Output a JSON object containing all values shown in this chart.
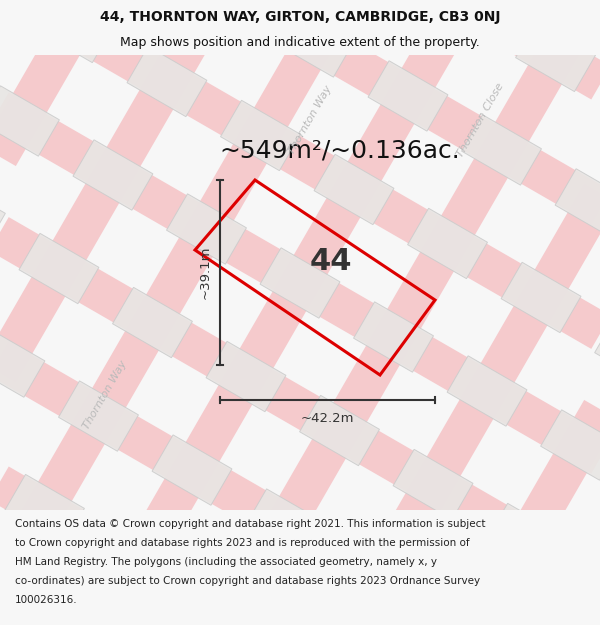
{
  "title": "44, THORNTON WAY, GIRTON, CAMBRIDGE, CB3 0NJ",
  "subtitle": "Map shows position and indicative extent of the property.",
  "area_text": "~549m²/~0.136ac.",
  "property_number": "44",
  "dim_horizontal": "~42.2m",
  "dim_vertical": "~39.1m",
  "street_label_way_left": "Thornton Way",
  "street_label_way_top": "Thornton Way",
  "street_label_close": "Thornton Close",
  "footer_lines": [
    "Contains OS data © Crown copyright and database right 2021. This information is subject",
    "to Crown copyright and database rights 2023 and is reproduced with the permission of",
    "HM Land Registry. The polygons (including the associated geometry, namely x, y",
    "co-ordinates) are subject to Crown copyright and database rights 2023 Ordnance Survey",
    "100026316."
  ],
  "bg_color": "#f7f7f7",
  "map_bg": "#ffffff",
  "road_color": "#f5c5c8",
  "road_lw": 1.5,
  "building_fill": "#e8e6e4",
  "building_edge": "#cccccc",
  "property_edge_color": "#dd0000",
  "dim_color": "#333333",
  "street_color": "#bbbbbb",
  "title_fontsize": 10,
  "subtitle_fontsize": 9,
  "area_fontsize": 18,
  "number_fontsize": 22,
  "footer_fontsize": 7.5
}
